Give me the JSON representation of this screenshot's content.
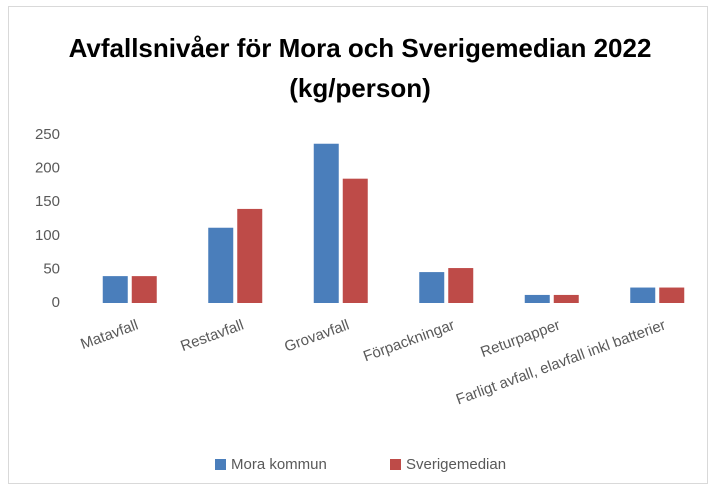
{
  "chart_data": {
    "type": "bar",
    "title": "Avfallsnivåer för Mora och Sverigemedian 2022 (kg/person)",
    "categories": [
      "Matavfall",
      "Restavfall",
      "Grovavfall",
      "Förpackningar",
      "Returpapper",
      "Farligt avfall, elavfall inkl batterier"
    ],
    "series": [
      {
        "name": "Mora kommun",
        "color": "#4a7ebb",
        "values": [
          40,
          112,
          237,
          46,
          12,
          23
        ]
      },
      {
        "name": "Sverigemedian",
        "color": "#be4b48",
        "values": [
          40,
          140,
          185,
          52,
          12,
          23
        ]
      }
    ],
    "ylim": [
      0,
      250
    ],
    "yticks": [
      0,
      50,
      100,
      150,
      200,
      250
    ],
    "grid": false,
    "legend": "bottom"
  }
}
